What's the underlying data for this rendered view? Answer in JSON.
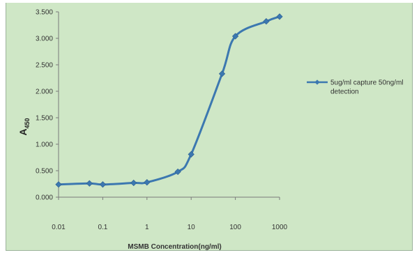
{
  "chart_data": {
    "type": "line",
    "title": "",
    "xlabel": "MSMB Concentration(ng/ml)",
    "ylabel": "A",
    "ylabel_subscript": "450",
    "xscale": "log",
    "xlim": [
      0.01,
      1000
    ],
    "ylim": [
      0,
      3.5
    ],
    "x_ticks": [
      "0.01",
      "0.1",
      "1",
      "10",
      "100",
      "1000"
    ],
    "y_ticks": [
      "0.000",
      "0.500",
      "1.000",
      "1.500",
      "2.000",
      "2.500",
      "3.000",
      "3.500"
    ],
    "grid": false,
    "legend_position": "right",
    "series": [
      {
        "name": "5ug/ml capture 50ng/ml detection",
        "color": "#3c78b0",
        "marker": "diamond",
        "x": [
          0.01,
          0.05,
          0.1,
          0.5,
          1,
          5,
          10,
          50,
          100,
          500,
          1000
        ],
        "y": [
          0.24,
          0.26,
          0.24,
          0.27,
          0.28,
          0.48,
          0.81,
          2.33,
          3.04,
          3.32,
          3.41
        ]
      }
    ]
  }
}
